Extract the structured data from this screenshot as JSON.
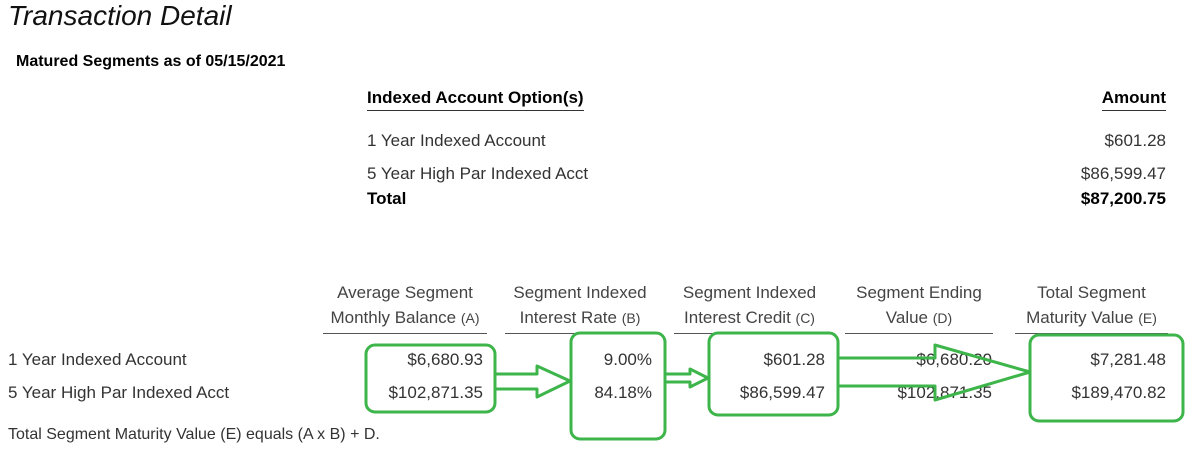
{
  "title": "Transaction Detail",
  "subtitle": "Matured Segments as of 05/15/2021",
  "summary": {
    "col_option": "Indexed Account Option(s)",
    "col_amount": "Amount",
    "rows": [
      {
        "option": "1 Year Indexed Account",
        "amount": "$601.28"
      },
      {
        "option": "5 Year High Par Indexed Acct",
        "amount": "$86,599.47"
      }
    ],
    "total_label": "Total",
    "total_amount": "$87,200.75"
  },
  "detail": {
    "headers": [
      {
        "line1": "Average Segment",
        "line2": "Monthly Balance",
        "tag": "(A)"
      },
      {
        "line1": "Segment Indexed",
        "line2": "Interest Rate",
        "tag": "(B)"
      },
      {
        "line1": "Segment Indexed",
        "line2": "Interest Credit",
        "tag": "(C)"
      },
      {
        "line1": "Segment Ending",
        "line2": "Value",
        "tag": "(D)"
      },
      {
        "line1": "Total Segment",
        "line2": "Maturity Value",
        "tag": "(E)"
      }
    ],
    "rows": [
      {
        "label": "1 Year Indexed Account",
        "a": "$6,680.93",
        "b": "9.00%",
        "c": "$601.28",
        "d": "$6,680.20",
        "e": "$7,281.48"
      },
      {
        "label": "5 Year High Par Indexed Acct",
        "a": "$102,871.35",
        "b": "84.18%",
        "c": "$86,599.47",
        "d": "$102,871.35",
        "e": "$189,470.82"
      }
    ],
    "footnote": "Total Segment Maturity Value (E) equals (A x B) + D."
  },
  "annotation_color": "#3db54a"
}
